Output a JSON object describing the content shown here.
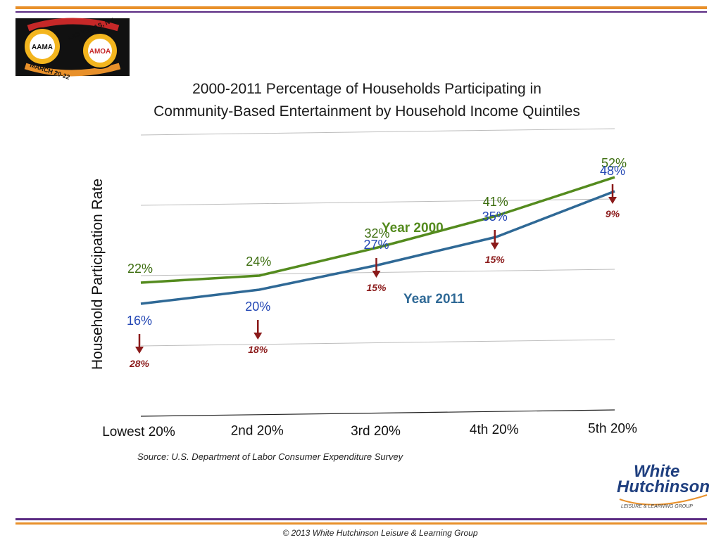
{
  "colors": {
    "orange": "#e8902a",
    "purple": "#5a2a82",
    "green": "#548b1e",
    "green_label": "#3d6e10",
    "blue": "#2f6996",
    "blue_label": "#2246b4",
    "drop": "#8b1a1a",
    "logo_bg": "#111111"
  },
  "logo": {
    "left_badge": "AAMA",
    "right_badge": "AMOA",
    "location": "LAS VEGAS, NV",
    "dates": "MARCH 20-22"
  },
  "brand": {
    "line1": "White",
    "line2": "Hutchinson",
    "tagline": "LEISURE & LEARNING GROUP"
  },
  "footer": {
    "copyright": "© 2013 White Hutchinson Leisure & Learning Group"
  },
  "chart_data": {
    "type": "line",
    "title_lines": [
      "2000-2011 Percentage of Households Participating in",
      "Community-Based Entertainment by Household Income Quintiles"
    ],
    "ylabel": "Household Participation Rate",
    "xlabel": "",
    "categories": [
      "Lowest 20%",
      "2nd 20%",
      "3rd 20%",
      "4th 20%",
      "5th 20%"
    ],
    "ylim": [
      0,
      60
    ],
    "grid": true,
    "series": [
      {
        "name": "Year 2000",
        "values": [
          22,
          24,
          32,
          41,
          52
        ],
        "labels": [
          "22%",
          "24%",
          "32%",
          "41%",
          "52%"
        ]
      },
      {
        "name": "Year 2011",
        "values": [
          16,
          20,
          27,
          35,
          48
        ],
        "labels": [
          "16%",
          "20%",
          "27%",
          "35%",
          "48%"
        ]
      }
    ],
    "declines": [
      "28%",
      "18%",
      "15%",
      "15%",
      "9%"
    ],
    "source": "Source: U.S. Department of Labor Consumer Expenditure Survey"
  }
}
